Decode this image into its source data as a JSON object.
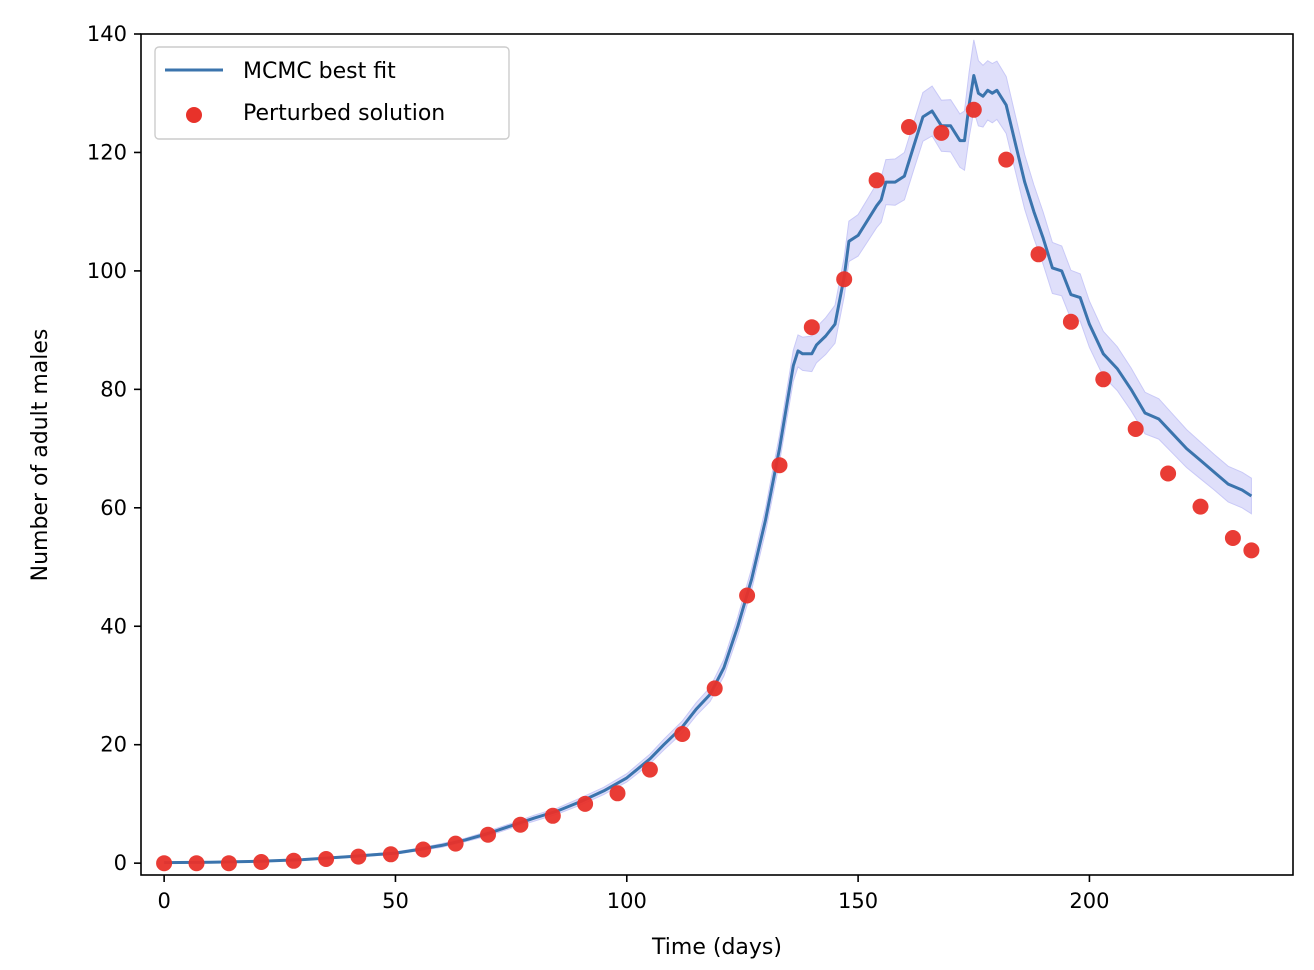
{
  "chart_data": {
    "type": "line",
    "title": "",
    "xlabel": "Time (days)",
    "ylabel": "Number of adult males",
    "xlim": [
      -5,
      244
    ],
    "ylim": [
      -2,
      140
    ],
    "xticks": [
      0,
      50,
      100,
      150,
      200
    ],
    "yticks": [
      0,
      20,
      40,
      60,
      80,
      100,
      120,
      140
    ],
    "grid": false,
    "legend_position": "upper-left",
    "legend": [
      "MCMC best fit",
      "Perturbed solution"
    ],
    "series": [
      {
        "name": "MCMC best fit",
        "kind": "line",
        "color": "#3b74ad",
        "band_color": "#c9c9f7",
        "x": [
          0,
          10,
          20,
          30,
          40,
          50,
          55,
          60,
          65,
          70,
          75,
          80,
          85,
          90,
          95,
          100,
          105,
          108,
          112,
          115,
          118,
          121,
          124,
          127,
          130,
          133,
          136,
          137,
          138,
          140,
          141,
          143,
          145,
          147,
          148,
          150,
          152,
          154,
          155,
          156,
          158,
          160,
          162,
          164,
          166,
          168,
          170,
          172,
          173,
          174,
          175,
          176,
          177,
          178,
          179,
          180,
          182,
          184,
          186,
          188,
          190,
          192,
          194,
          196,
          198,
          200,
          203,
          206,
          209,
          212,
          215,
          218,
          221,
          224,
          227,
          230,
          233,
          235
        ],
        "y": [
          0.1,
          0.15,
          0.3,
          0.6,
          1.1,
          1.7,
          2.3,
          3.0,
          3.9,
          5.0,
          6.3,
          7.6,
          8.8,
          10.4,
          12.2,
          14.4,
          17.6,
          20.0,
          23.0,
          26.0,
          28.5,
          33.0,
          40.0,
          48.0,
          58.0,
          70.0,
          84.0,
          86.5,
          86.0,
          86.0,
          87.5,
          89.0,
          91.0,
          99.0,
          105.0,
          106.0,
          108.5,
          111.0,
          112.0,
          115.0,
          115.0,
          116.0,
          121.0,
          126.0,
          127.0,
          124.5,
          124.5,
          122.0,
          122.0,
          128.0,
          133.0,
          130.0,
          129.5,
          130.5,
          130.0,
          130.5,
          128.0,
          121.5,
          115.0,
          110.0,
          105.5,
          100.5,
          100.0,
          96.0,
          95.5,
          91.0,
          86.0,
          83.5,
          80.0,
          76.0,
          75.0,
          72.5,
          70.0,
          68.0,
          66.0,
          64.0,
          63.0,
          62.0
        ],
        "band_half_width": [
          0.1,
          0.1,
          0.1,
          0.1,
          0.15,
          0.2,
          0.2,
          0.3,
          0.3,
          0.4,
          0.4,
          0.5,
          0.5,
          0.6,
          0.6,
          0.7,
          0.8,
          0.9,
          1.0,
          1.1,
          1.2,
          1.4,
          1.6,
          1.8,
          2.0,
          2.3,
          2.6,
          2.7,
          2.8,
          3.0,
          3.0,
          3.1,
          3.2,
          3.3,
          3.4,
          3.5,
          3.6,
          3.7,
          3.8,
          3.8,
          3.9,
          4.0,
          4.0,
          4.1,
          4.2,
          4.3,
          4.4,
          4.5,
          5.0,
          5.5,
          6.0,
          5.5,
          5.2,
          5.0,
          5.0,
          4.9,
          4.8,
          4.7,
          4.6,
          4.5,
          4.4,
          4.3,
          4.2,
          4.1,
          4.0,
          3.9,
          3.8,
          3.7,
          3.6,
          3.5,
          3.4,
          3.3,
          3.2,
          3.1,
          3.0,
          3.0,
          3.0,
          3.0
        ]
      },
      {
        "name": "Perturbed solution",
        "kind": "scatter",
        "color": "#e8322a",
        "x": [
          0,
          7,
          14,
          21,
          28,
          35,
          42,
          49,
          56,
          63,
          70,
          77,
          84,
          91,
          98,
          105,
          112,
          119,
          126,
          133,
          140,
          147,
          154,
          161,
          168,
          175,
          182,
          189,
          196,
          203,
          210,
          217,
          224,
          231,
          235
        ],
        "y": [
          0.0,
          0.0,
          0.0,
          0.2,
          0.4,
          0.7,
          1.1,
          1.5,
          2.3,
          3.3,
          4.8,
          6.5,
          8.0,
          10.0,
          11.8,
          15.8,
          21.8,
          29.5,
          45.2,
          67.2,
          90.5,
          98.6,
          115.3,
          124.3,
          123.3,
          127.2,
          118.8,
          102.8,
          91.4,
          81.7,
          73.3,
          65.8,
          60.2,
          54.9,
          52.8
        ]
      }
    ]
  }
}
